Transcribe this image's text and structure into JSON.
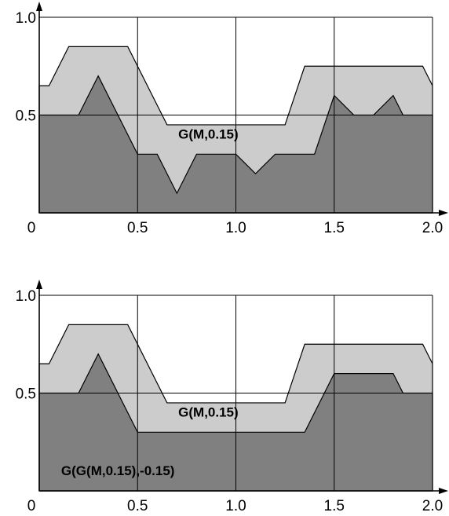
{
  "colors": {
    "background": "#ffffff",
    "light_fill": "#cccccc",
    "dark_fill": "#808080",
    "line": "#000000"
  },
  "chart_data": [
    {
      "type": "area",
      "title": "",
      "xlabel": "",
      "ylabel": "",
      "xlim": [
        0,
        2.0
      ],
      "ylim": [
        0,
        1.0
      ],
      "grid": true,
      "x_ticks": [
        {
          "value": 0,
          "label": "0"
        },
        {
          "value": 0.5,
          "label": "0.5"
        },
        {
          "value": 1.0,
          "label": "1.0"
        },
        {
          "value": 1.5,
          "label": "1.5"
        },
        {
          "value": 2.0,
          "label": "2.0"
        }
      ],
      "y_ticks": [
        {
          "value": 0.5,
          "label": "0.5"
        },
        {
          "value": 1.0,
          "label": "1.0"
        }
      ],
      "annotations": [
        {
          "text": "G(M,0.15)",
          "x": 0.86,
          "y": 0.38
        }
      ],
      "series": [
        {
          "role": "upper-envelope",
          "x": [
            0,
            0.05,
            0.15,
            0.45,
            0.65,
            1.25,
            1.35,
            1.95,
            2.0
          ],
          "y": [
            0.65,
            0.65,
            0.85,
            0.85,
            0.45,
            0.45,
            0.75,
            0.75,
            0.65
          ]
        },
        {
          "role": "signal",
          "x": [
            0,
            0.2,
            0.3,
            0.5,
            0.6,
            0.7,
            0.8,
            1.0,
            1.1,
            1.2,
            1.4,
            1.5,
            1.6,
            1.7,
            1.8,
            1.85,
            2.0
          ],
          "y": [
            0.5,
            0.5,
            0.7,
            0.3,
            0.3,
            0.1,
            0.3,
            0.3,
            0.2,
            0.3,
            0.3,
            0.6,
            0.5,
            0.5,
            0.6,
            0.5,
            0.5
          ]
        }
      ]
    },
    {
      "type": "area",
      "title": "",
      "xlabel": "",
      "ylabel": "",
      "xlim": [
        0,
        2.0
      ],
      "ylim": [
        0,
        1.0
      ],
      "grid": true,
      "x_ticks": [
        {
          "value": 0,
          "label": "0"
        },
        {
          "value": 0.5,
          "label": "0.5"
        },
        {
          "value": 1.0,
          "label": "1.0"
        },
        {
          "value": 1.5,
          "label": "1.5"
        },
        {
          "value": 2.0,
          "label": "2.0"
        }
      ],
      "y_ticks": [
        {
          "value": 0.5,
          "label": "0.5"
        },
        {
          "value": 1.0,
          "label": "1.0"
        }
      ],
      "annotations": [
        {
          "text": "G(M,0.15)",
          "x": 0.86,
          "y": 0.38
        },
        {
          "text": "G(G(M,0.15),-0.15)",
          "x": 0.4,
          "y": 0.08
        }
      ],
      "series": [
        {
          "role": "upper-envelope",
          "x": [
            0,
            0.05,
            0.15,
            0.45,
            0.65,
            1.25,
            1.35,
            1.95,
            2.0
          ],
          "y": [
            0.65,
            0.65,
            0.85,
            0.85,
            0.45,
            0.45,
            0.75,
            0.75,
            0.65
          ]
        },
        {
          "role": "signal",
          "x": [
            0,
            0.2,
            0.3,
            0.5,
            1.35,
            1.5,
            1.8,
            1.85,
            2.0
          ],
          "y": [
            0.5,
            0.5,
            0.7,
            0.3,
            0.3,
            0.6,
            0.6,
            0.5,
            0.5
          ]
        }
      ]
    }
  ]
}
